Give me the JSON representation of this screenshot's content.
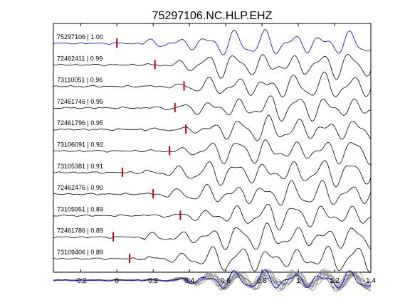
{
  "chart_data": {
    "type": "line",
    "title": "75297106.NC.HLP.EHZ",
    "xlabel": "",
    "ylabel": "",
    "xlim": [
      -0.35,
      1.4
    ],
    "x_ticks": [
      -0.2,
      0,
      0.2,
      0.4,
      0.6,
      0.8,
      1,
      1.2,
      1.4
    ],
    "x_tick_labels": [
      "-0.2",
      "0",
      "0.2",
      "0.4",
      "0.6",
      "0.8",
      "1",
      "1.2",
      "1.4"
    ],
    "grid": false,
    "colors": {
      "reference": "#0000cc",
      "trace": "#000000",
      "pick": "#cc0000",
      "overlay": "#808080"
    },
    "series": [
      {
        "name": "75297106",
        "label": "75297106 | 1.00",
        "cc": 1.0,
        "pick": 0.0,
        "reference": true
      },
      {
        "name": "72462411",
        "label": "72462411 | 0.99",
        "cc": 0.99,
        "pick": 0.21
      },
      {
        "name": "73110051",
        "label": "73110051 | 0.96",
        "cc": 0.96,
        "pick": 0.37
      },
      {
        "name": "72461746",
        "label": "72461746 | 0.95",
        "cc": 0.95,
        "pick": 0.32
      },
      {
        "name": "72461796",
        "label": "72461796 | 0.95",
        "cc": 0.95,
        "pick": 0.38
      },
      {
        "name": "73106091",
        "label": "73106091 | 0.92",
        "cc": 0.92,
        "pick": 0.29
      },
      {
        "name": "73105381",
        "label": "73105381 | 0.91",
        "cc": 0.91,
        "pick": 0.03
      },
      {
        "name": "72462476",
        "label": "72462476 | 0.90",
        "cc": 0.9,
        "pick": 0.2
      },
      {
        "name": "73105951",
        "label": "73105951 | 0.89",
        "cc": 0.89,
        "pick": 0.35
      },
      {
        "name": "72461786",
        "label": "72461786 | 0.89",
        "cc": 0.89,
        "pick": -0.02
      },
      {
        "name": "73109406",
        "label": "73109406 | 0.89",
        "cc": 0.89,
        "pick": 0.07
      }
    ],
    "overlay_row": true
  }
}
